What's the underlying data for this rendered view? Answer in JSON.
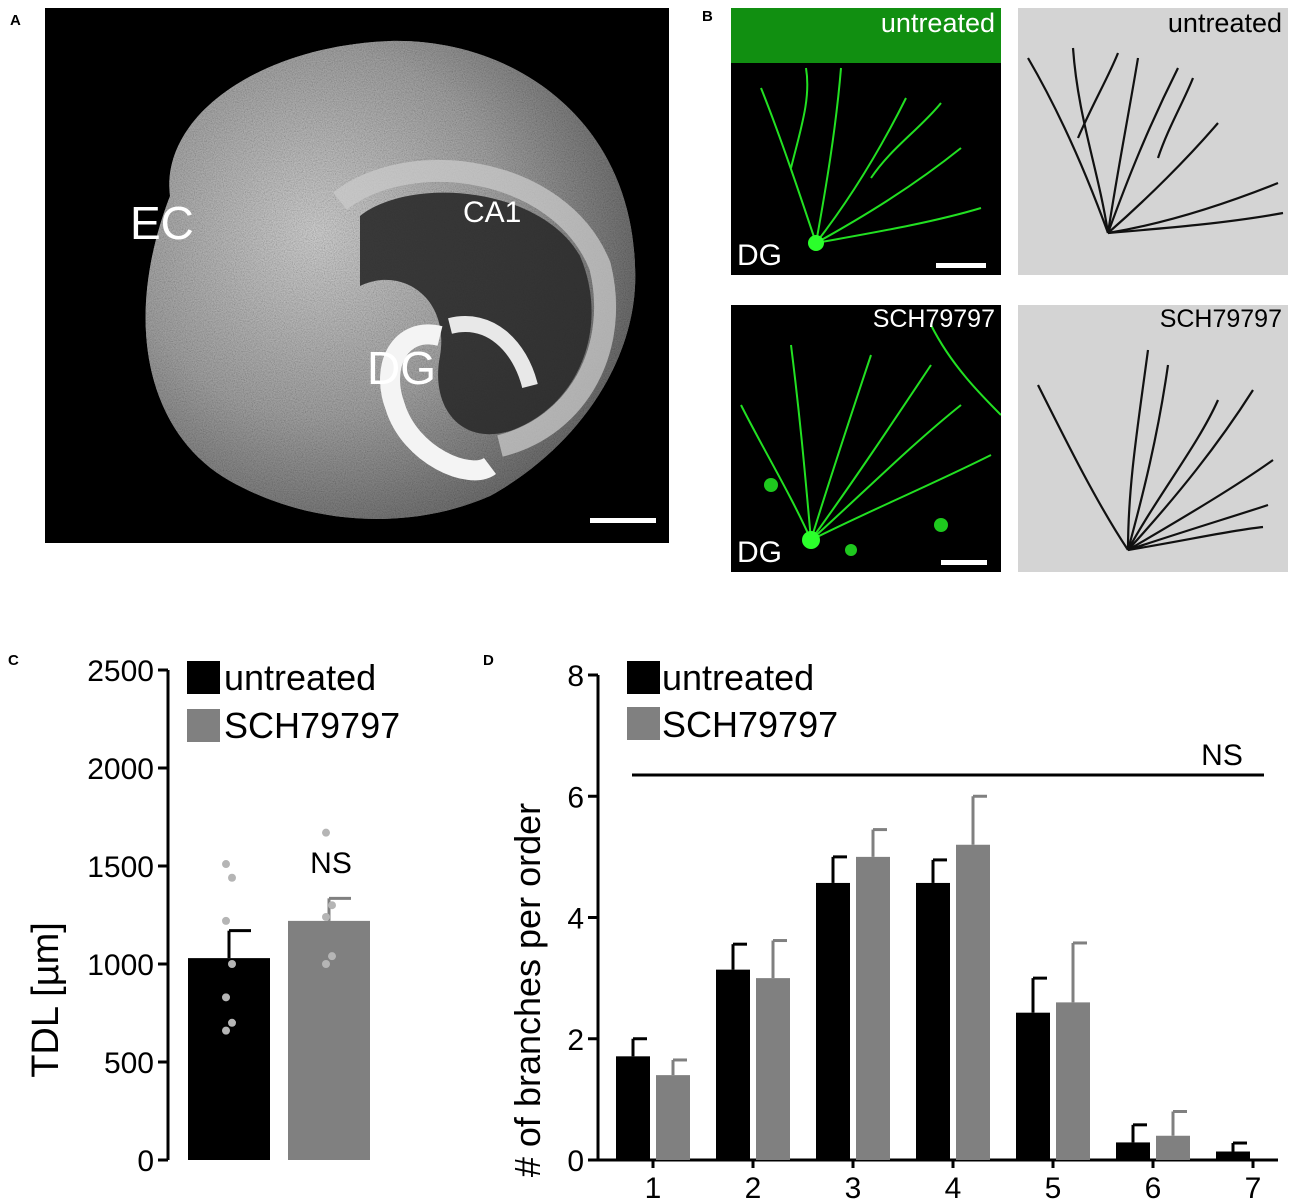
{
  "panel_a": {
    "letter": "A",
    "labels": {
      "ec": "EC",
      "ca1": "CA1",
      "dg": "DG"
    }
  },
  "panel_b": {
    "letter": "B",
    "top_left_label": "untreated",
    "top_right_label": "untreated",
    "bottom_left_label": "SCH79797",
    "bottom_right_label": "SCH79797",
    "dg_top": "DG",
    "dg_bottom": "DG"
  },
  "colors": {
    "untreated": "#000000",
    "sch79797": "#808080",
    "dots": "#b5b5b5",
    "neuron_green": "#1ee61e",
    "tracing_bg": "#d4d4d4"
  },
  "chart_data": [
    {
      "panel": "C",
      "type": "bar",
      "ylabel": "TDL [µm]",
      "ylim": [
        0,
        2500
      ],
      "yticks": [
        "0",
        "500",
        "1000",
        "1500",
        "2000",
        "2500"
      ],
      "legend": [
        "untreated",
        "SCH79797"
      ],
      "legend_position": "top",
      "annotation": "NS",
      "bars": [
        {
          "name": "untreated",
          "value": 1030,
          "error": 140,
          "points": [
            660,
            700,
            830,
            1000,
            1220,
            1440,
            1510
          ]
        },
        {
          "name": "SCH79797",
          "value": 1220,
          "error": 115,
          "points": [
            1000,
            1040,
            1240,
            1300,
            1670
          ]
        }
      ]
    },
    {
      "panel": "D",
      "type": "bar",
      "ylabel": "# of branches per order",
      "ylim": [
        0,
        8
      ],
      "yticks": [
        "0",
        "2",
        "4",
        "6",
        "8"
      ],
      "categories": [
        "1",
        "2",
        "3",
        "4",
        "5",
        "6",
        "7"
      ],
      "legend": [
        "untreated",
        "SCH79797"
      ],
      "legend_position": "top-left",
      "annotation": "NS",
      "series": [
        {
          "name": "untreated",
          "values": [
            1.71,
            3.14,
            4.57,
            4.57,
            2.43,
            0.29,
            0.14
          ],
          "errors": [
            0.29,
            0.42,
            0.43,
            0.38,
            0.57,
            0.29,
            0.14
          ]
        },
        {
          "name": "SCH79797",
          "values": [
            1.4,
            3.0,
            5.0,
            5.2,
            2.6,
            0.4,
            0
          ],
          "errors": [
            0.25,
            0.62,
            0.45,
            0.8,
            0.98,
            0.4,
            0
          ]
        }
      ]
    }
  ]
}
